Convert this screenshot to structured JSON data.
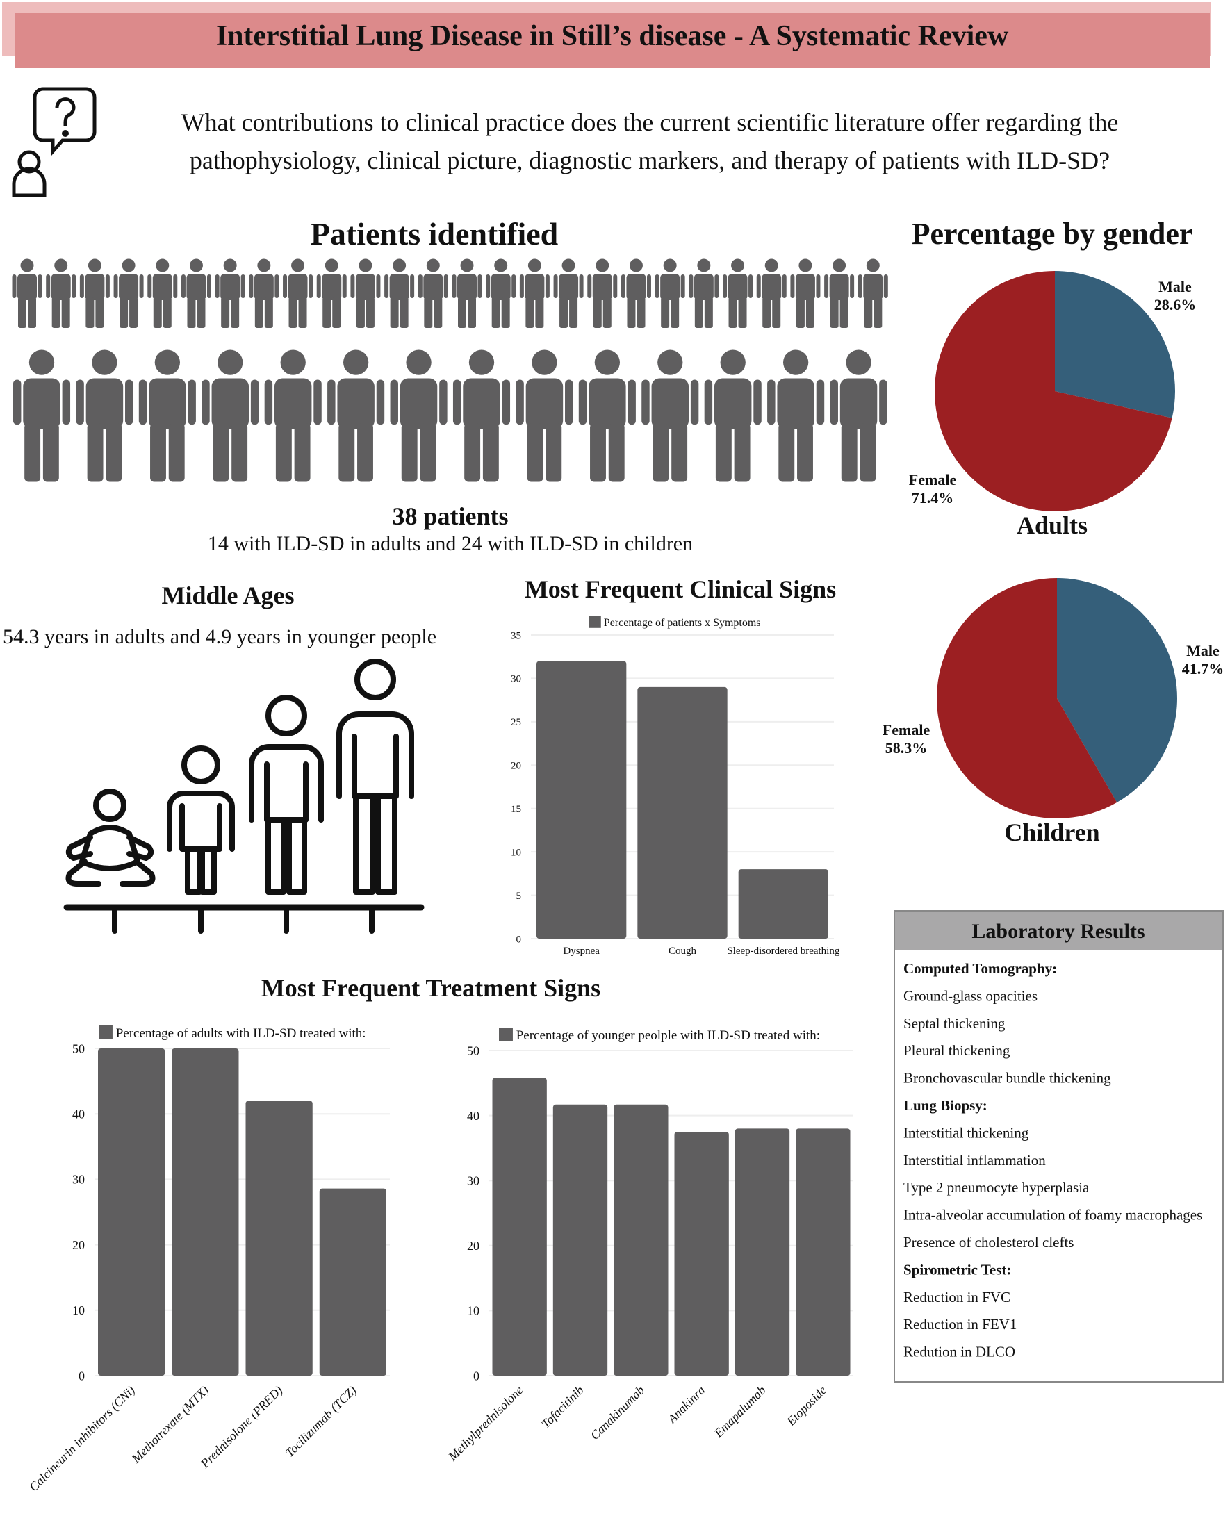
{
  "title": "Interstitial Lung Disease in Still’s disease - A Systematic Review",
  "question": {
    "line1": "What contributions to clinical practice does the current scientific literature offer regarding the",
    "line2": "pathophysiology, clinical picture, diagnostic markers, and therapy of patients with ILD-SD?",
    "icons": [
      "question-bubble-icon",
      "person-outline-icon"
    ]
  },
  "patients": {
    "heading": "Patients identified",
    "total_label": "38 patients",
    "detail": "14 with ILD-SD in adults and 24 with ILD-SD in children",
    "adults": 14,
    "children": 24,
    "color": "#5f5e5f"
  },
  "ages": {
    "heading": "Middle Ages",
    "text": "54.3 years in adults and 4.9 years in younger people"
  },
  "gender": {
    "heading": "Percentage by gender",
    "colors": {
      "male": "#355f7a",
      "female": "#9c1f22"
    },
    "pies": [
      {
        "caption": "Adults",
        "male_label": "Male",
        "male_value": "28.6%",
        "female_label": "Female",
        "female_value": "71.4%",
        "male": 28.6,
        "female": 71.4
      },
      {
        "caption": "Children",
        "male_label": "Male",
        "male_value": "41.7%",
        "female_label": "Female",
        "female_value": "58.3%",
        "male": 41.7,
        "female": 58.3
      }
    ]
  },
  "treatment_heading": "Most Frequent Treatment Signs",
  "lab": {
    "heading": "Laboratory Results",
    "items": [
      {
        "text": "Computed Tomography:",
        "bold": true
      },
      {
        "text": "Ground-glass opacities"
      },
      {
        "text": "Septal thickening"
      },
      {
        "text": "Pleural thickening"
      },
      {
        "text": "Bronchovascular bundle thickening"
      },
      {
        "text": "Lung Biopsy:",
        "bold": true
      },
      {
        "text": "Interstitial thickening"
      },
      {
        "text": "Interstitial inflammation"
      },
      {
        "text": "Type 2 pneumocyte hyperplasia"
      },
      {
        "text": "Intra-alveolar accumulation of foamy macrophages"
      },
      {
        "text": "Presence of cholesterol clefts"
      },
      {
        "text": "Spirometric Test:",
        "bold": true
      },
      {
        "text": "Reduction in FVC"
      },
      {
        "text": "Reduction in FEV1"
      },
      {
        "text": "Redution in DLCO"
      }
    ]
  },
  "chart_data": [
    {
      "type": "bar",
      "title": "Most Frequent Clinical Signs",
      "legend": "Percentage of patients x Symptoms",
      "categories": [
        "Dyspnea",
        "Cough",
        "Sleep-disordered breathing"
      ],
      "values": [
        32,
        29,
        8
      ],
      "ylim": [
        0,
        35
      ],
      "yticks": [
        0,
        5,
        10,
        15,
        20,
        25,
        30,
        35
      ],
      "grid": true,
      "legend_position": "top",
      "color": "#5f5e5f"
    },
    {
      "type": "bar",
      "legend": "Percentage of adults with ILD-SD treated with:",
      "categories": [
        "Calcineurin inhibitors (CNi)",
        "Methotrexate (MTX)",
        "Prednisolone (PRED)",
        "Tocilizumab (TCZ)"
      ],
      "values": [
        50,
        50,
        42,
        28.6
      ],
      "ylim": [
        0,
        50
      ],
      "yticks": [
        0,
        10,
        20,
        30,
        40,
        50
      ],
      "grid": true,
      "legend_position": "top",
      "color": "#5f5e5f"
    },
    {
      "type": "bar",
      "legend": "Percentage of younger peolple with ILD-SD treated with:",
      "categories": [
        "Methylprednisolone",
        "Tofacitinib",
        "Canakinumab",
        "Anakinra",
        "Emapalumab",
        "Etoposide"
      ],
      "values": [
        45.8,
        41.7,
        41.7,
        37.5,
        38,
        38
      ],
      "ylim": [
        0,
        50
      ],
      "yticks": [
        0,
        10,
        20,
        30,
        40,
        50
      ],
      "grid": true,
      "legend_position": "top",
      "color": "#5f5e5f"
    }
  ]
}
